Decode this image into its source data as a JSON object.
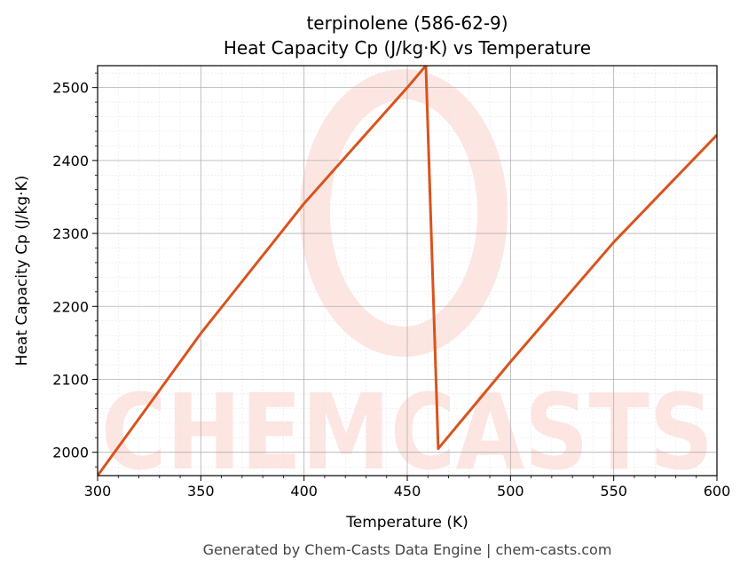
{
  "chart_data": {
    "type": "line",
    "title": "terpinolene (586-62-9)",
    "subtitle": "Heat Capacity Cp (J/kg·K) vs Temperature",
    "x_label": "Temperature (K)",
    "y_label": "Heat Capacity Cp (J/kg·K)",
    "x": [
      300,
      350,
      400,
      450,
      459,
      465,
      500,
      550,
      600
    ],
    "series": [
      {
        "name": "Cp",
        "color": "#d9531e",
        "values": [
          1968,
          2163,
          2341,
          2500,
          2530,
          2005,
          2124,
          2288,
          2435
        ]
      }
    ],
    "xlim": [
      300,
      600
    ],
    "xticks": [
      300,
      350,
      400,
      450,
      500,
      550,
      600
    ],
    "ylim": [
      1968,
      2530
    ],
    "yticks": [
      2000,
      2100,
      2200,
      2300,
      2400,
      2500
    ],
    "grid": true,
    "minor_grid": true,
    "watermark": "CHEMCASTS",
    "footer": "Generated by Chem-Casts Data Engine | chem-casts.com"
  }
}
